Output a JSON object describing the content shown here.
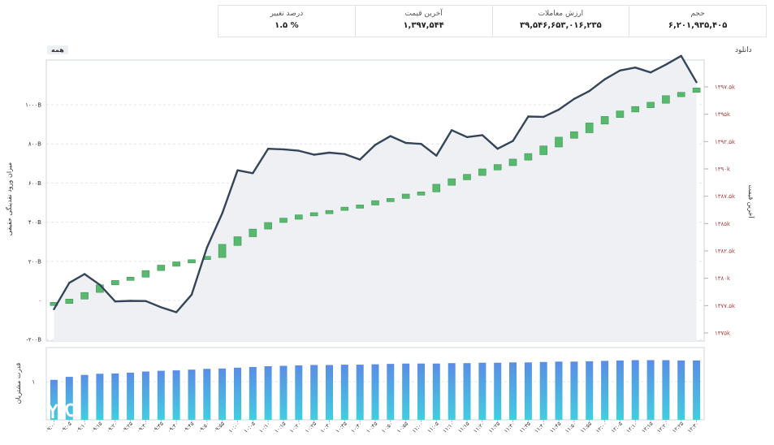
{
  "stats": [
    {
      "label": "درصد تغییر",
      "value": "۱.۵ %"
    },
    {
      "label": "آخرین قیمت",
      "value": "۱,۳۹۷,۵۴۴"
    },
    {
      "label": "ارزش معاملات",
      "value": "۳۹,۵۴۶,۶۵۳,۰۱۶,۲۳۵"
    },
    {
      "label": "حجم",
      "value": "۶,۲۰۱,۹۳۵,۴۰۵"
    }
  ],
  "download_label": "دانلود",
  "range_button": "همه",
  "watermark": "YJC",
  "colors": {
    "line": "#34455a",
    "candle": "#58b86e",
    "candle_edge": "#3f9a56",
    "bar_top": "#5a8de6",
    "bar_bottom": "#43cde0",
    "right_axis": "#a04040"
  },
  "chart_data": [
    {
      "type": "line",
      "ylabel": "میزان ورود نقدینگی حقیقی",
      "yticks_left": [
        "۱۰۰۰B",
        "۸۰۰B",
        "۶۰۰B",
        "۴۰۰B",
        "۲۰۰B",
        "۰",
        "-۲۰۰B"
      ],
      "ylim": [
        -200,
        1000
      ],
      "x": [
        "۰۹:۰۰",
        "۰۹:۰۵",
        "۰۹:۱۰",
        "۰۹:۱۵",
        "۰۹:۲۰",
        "۰۹:۲۵",
        "۰۹:۳۰",
        "۰۹:۳۵",
        "۰۹:۴۰",
        "۰۹:۴۵",
        "۰۹:۵۰",
        "۰۹:۵۵",
        "۱۰:۰۰",
        "۱۰:۰۵",
        "۱۰:۱۰",
        "۱۰:۱۵",
        "۱۰:۲۰",
        "۱۰:۲۵",
        "۱۰:۳۰",
        "۱۰:۳۵",
        "۱۰:۴۰",
        "۱۰:۴۵",
        "۱۰:۵۰",
        "۱۰:۵۵",
        "۱۱:۰۰",
        "۱۱:۰۵",
        "۱۱:۱۰",
        "۱۱:۱۵",
        "۱۱:۲۰",
        "۱۱:۲۵",
        "۱۱:۳۰",
        "۱۱:۳۵",
        "۱۱:۴۰",
        "۱۱:۴۵",
        "۱۱:۵۰",
        "۱۱:۵۵",
        "۱۲:۰۰",
        "۱۲:۰۵",
        "۱۲:۱۰",
        "۱۲:۱۵",
        "۱۲:۲۰",
        "۱۲:۲۵",
        "۱۲:۳۰"
      ],
      "net_inflow": [
        -45,
        90,
        135,
        80,
        -5,
        -2,
        -3,
        -35,
        -60,
        30,
        270,
        445,
        665,
        650,
        775,
        772,
        765,
        745,
        755,
        748,
        720,
        795,
        840,
        805,
        800,
        740,
        870,
        835,
        845,
        775,
        815,
        940,
        938,
        975,
        1030,
        1070,
        1130,
        1175,
        1190,
        1165,
        1205,
        1250,
        1115
      ],
      "price_axis": {
        "label": "آخرین قیمت",
        "ticks": [
          "۱۳۹۷.۵k",
          "۱۳۹۵k",
          "۱۳۹۲.۵k",
          "۱۳۹۰k",
          "۱۳۸۷.۵k",
          "۱۳۸۵k",
          "۱۳۸۲.۵k",
          "۱۳۸۰k",
          "۱۳۷۷.۵k",
          "۱۳۷۵k"
        ],
        "range": [
          1375000,
          1397500
        ]
      },
      "candles": [
        {
          "open": 1377500,
          "close": 1377800
        },
        {
          "open": 1377700,
          "close": 1378100
        },
        {
          "open": 1378100,
          "close": 1378700
        },
        {
          "open": 1378700,
          "close": 1379400
        },
        {
          "open": 1379400,
          "close": 1379800
        },
        {
          "open": 1379800,
          "close": 1380100
        },
        {
          "open": 1380100,
          "close": 1380700
        },
        {
          "open": 1380700,
          "close": 1381200
        },
        {
          "open": 1381100,
          "close": 1381500
        },
        {
          "open": 1381400,
          "close": 1381700
        },
        {
          "open": 1381700,
          "close": 1382000
        },
        {
          "open": 1381900,
          "close": 1383100
        },
        {
          "open": 1383000,
          "close": 1383800
        },
        {
          "open": 1383800,
          "close": 1384500
        },
        {
          "open": 1384500,
          "close": 1385100
        },
        {
          "open": 1385100,
          "close": 1385500
        },
        {
          "open": 1385400,
          "close": 1385800
        },
        {
          "open": 1385700,
          "close": 1386000
        },
        {
          "open": 1385900,
          "close": 1386200
        },
        {
          "open": 1386200,
          "close": 1386500
        },
        {
          "open": 1386400,
          "close": 1386700
        },
        {
          "open": 1386700,
          "close": 1387100
        },
        {
          "open": 1387000,
          "close": 1387300
        },
        {
          "open": 1387300,
          "close": 1387700
        },
        {
          "open": 1387600,
          "close": 1387900
        },
        {
          "open": 1387900,
          "close": 1388600
        },
        {
          "open": 1388500,
          "close": 1389100
        },
        {
          "open": 1389000,
          "close": 1389500
        },
        {
          "open": 1389400,
          "close": 1390000
        },
        {
          "open": 1389900,
          "close": 1390400
        },
        {
          "open": 1390300,
          "close": 1390900
        },
        {
          "open": 1390800,
          "close": 1391400
        },
        {
          "open": 1391300,
          "close": 1392100
        },
        {
          "open": 1392000,
          "close": 1392900
        },
        {
          "open": 1392800,
          "close": 1393400
        },
        {
          "open": 1393300,
          "close": 1394200
        },
        {
          "open": 1394100,
          "close": 1394800
        },
        {
          "open": 1394700,
          "close": 1395300
        },
        {
          "open": 1395200,
          "close": 1395700
        },
        {
          "open": 1395600,
          "close": 1396100
        },
        {
          "open": 1396000,
          "close": 1396700
        },
        {
          "open": 1396600,
          "close": 1397000
        },
        {
          "open": 1397000,
          "close": 1397400
        }
      ]
    },
    {
      "type": "bar",
      "ylabel": "قدرت مشتریان",
      "yticks": [
        "۱"
      ],
      "ylim": [
        0,
        1.9
      ],
      "values": [
        1.05,
        1.13,
        1.18,
        1.21,
        1.22,
        1.24,
        1.27,
        1.29,
        1.3,
        1.32,
        1.34,
        1.35,
        1.37,
        1.39,
        1.41,
        1.42,
        1.43,
        1.44,
        1.44,
        1.45,
        1.45,
        1.46,
        1.47,
        1.48,
        1.48,
        1.48,
        1.49,
        1.49,
        1.5,
        1.5,
        1.51,
        1.51,
        1.52,
        1.53,
        1.53,
        1.54,
        1.55,
        1.56,
        1.57,
        1.57,
        1.57,
        1.56,
        1.56
      ]
    }
  ]
}
